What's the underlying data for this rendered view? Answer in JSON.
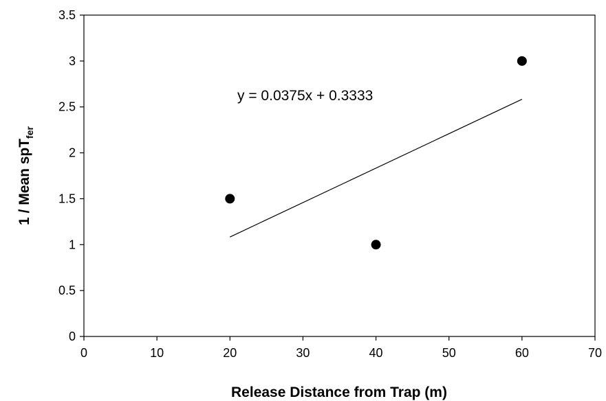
{
  "chart_data": {
    "type": "scatter",
    "title": "",
    "xlabel": "Release Distance from Trap (m)",
    "ylabel": {
      "main": "1 / Mean spT",
      "subscript": "fer"
    },
    "xlim": [
      0,
      70
    ],
    "ylim": [
      0,
      3.5
    ],
    "x_ticks": [
      0,
      10,
      20,
      30,
      40,
      50,
      60,
      70
    ],
    "y_ticks": [
      0,
      0.5,
      1,
      1.5,
      2,
      2.5,
      3,
      3.5
    ],
    "x_tick_labels": [
      "0",
      "10",
      "20",
      "30",
      "40",
      "50",
      "60",
      "70"
    ],
    "y_tick_labels": [
      "0",
      "0.5",
      "1",
      "1.5",
      "2",
      "2.5",
      "3",
      "3.5"
    ],
    "points": [
      {
        "x": 20,
        "y": 1.5
      },
      {
        "x": 40,
        "y": 1.0
      },
      {
        "x": 60,
        "y": 3.0
      }
    ],
    "trendline": {
      "slope": 0.0375,
      "intercept": 0.3333,
      "x_range": [
        20,
        60
      ],
      "equation_label": "y = 0.0375x + 0.3333"
    },
    "grid": false,
    "legend": "none",
    "colors": {
      "marker": "#000000",
      "line": "#000000",
      "axis": "#000000"
    }
  }
}
